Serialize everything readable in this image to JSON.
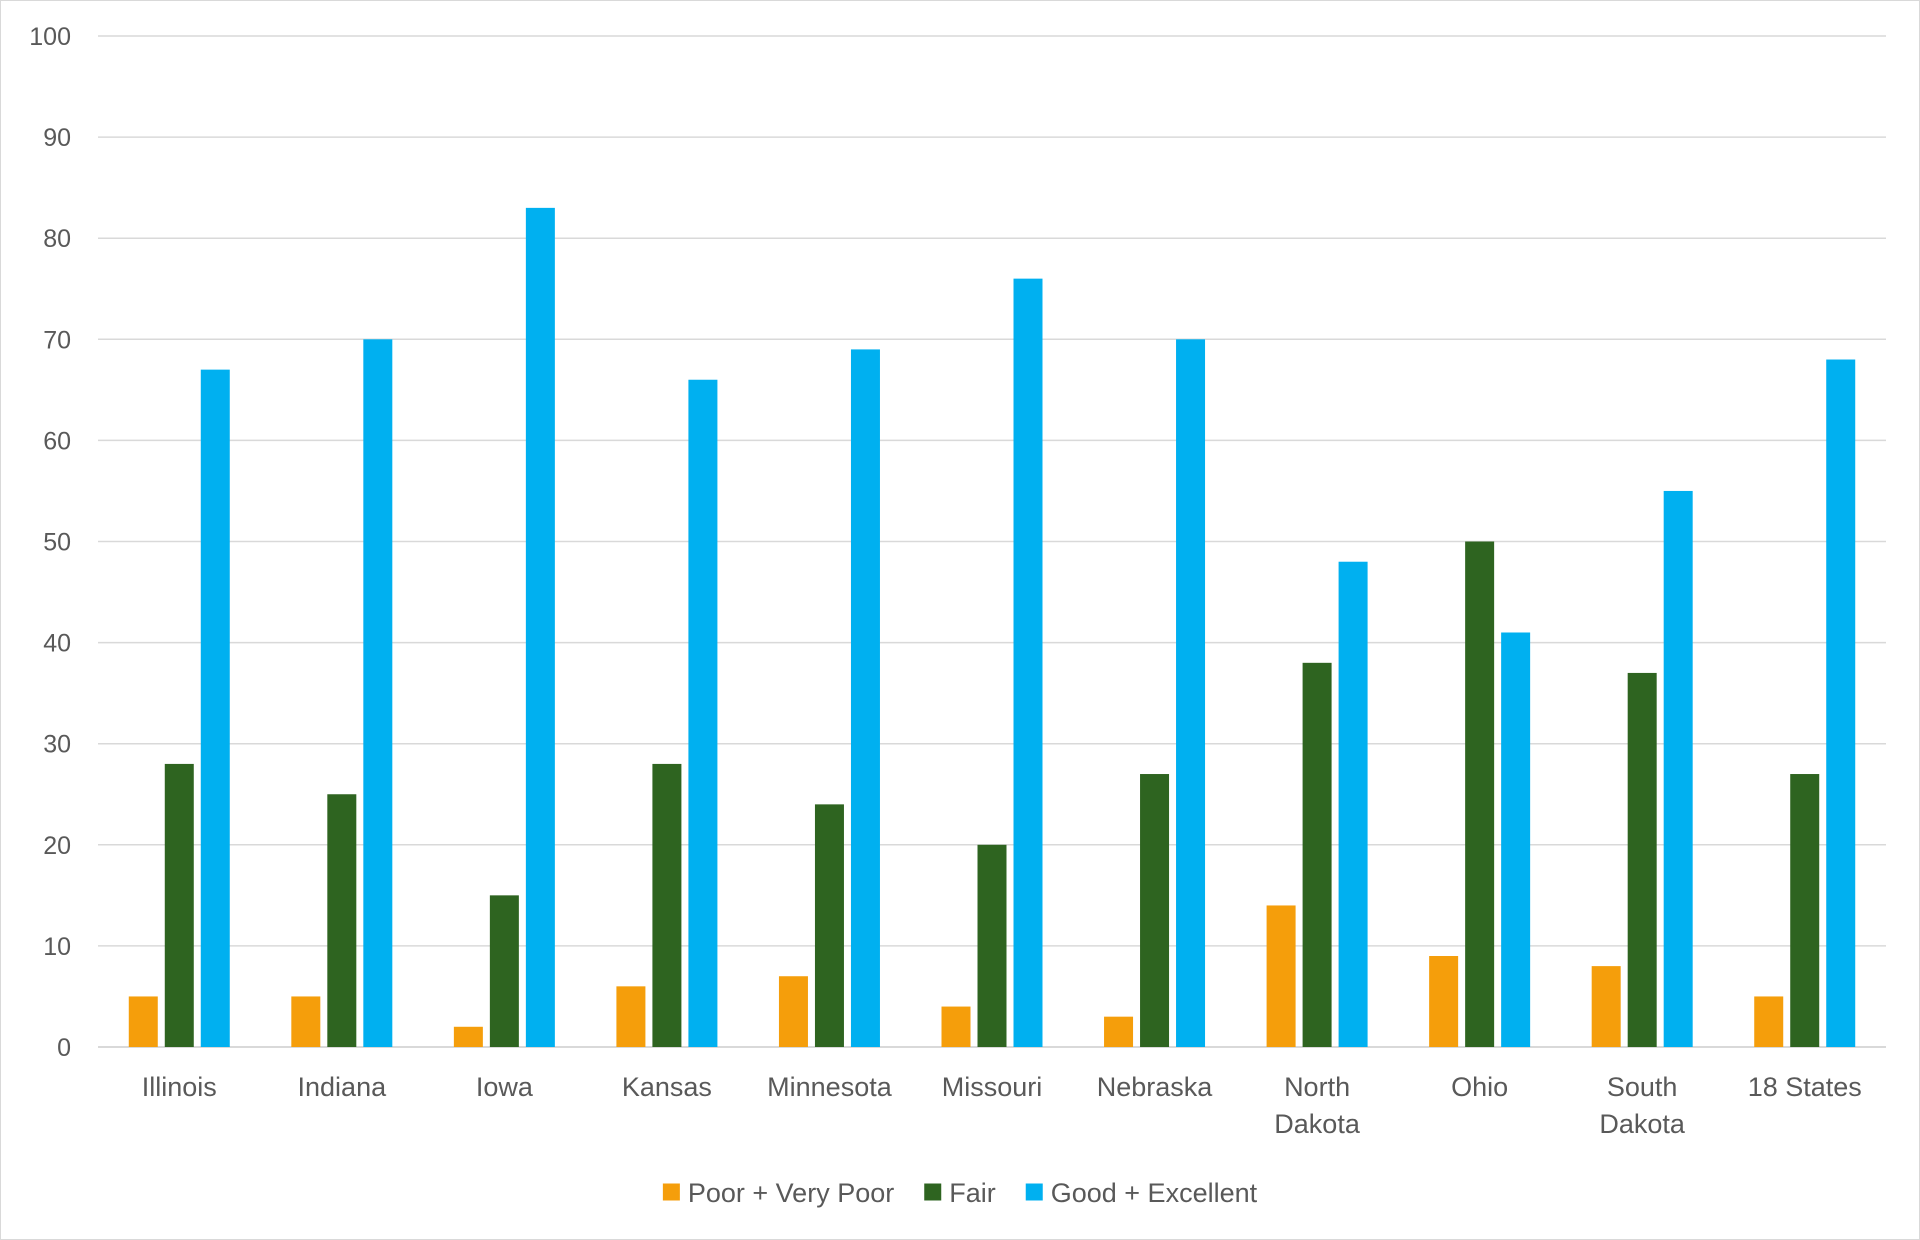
{
  "chart_data": {
    "type": "bar",
    "title": "",
    "xlabel": "",
    "ylabel": "",
    "ylim": [
      0,
      100
    ],
    "yticks": [
      0,
      10,
      20,
      30,
      40,
      50,
      60,
      70,
      80,
      90,
      100
    ],
    "grid": true,
    "legend_position": "bottom",
    "categories": [
      [
        "Illinois"
      ],
      [
        "Indiana"
      ],
      [
        "Iowa"
      ],
      [
        "Kansas"
      ],
      [
        "Minnesota"
      ],
      [
        "Missouri"
      ],
      [
        "Nebraska"
      ],
      [
        "North",
        "Dakota"
      ],
      [
        "Ohio"
      ],
      [
        "South",
        "Dakota"
      ],
      [
        "18 States"
      ]
    ],
    "series": [
      {
        "name": "Poor + Very Poor",
        "color": "#f59e0b",
        "values": [
          5,
          5,
          2,
          6,
          7,
          4,
          3,
          14,
          9,
          8,
          5
        ]
      },
      {
        "name": "Fair",
        "color": "#2e6420",
        "values": [
          28,
          25,
          15,
          28,
          24,
          20,
          27,
          38,
          50,
          37,
          27
        ]
      },
      {
        "name": "Good + Excellent",
        "color": "#00b0f0",
        "values": [
          67,
          70,
          83,
          66,
          69,
          76,
          70,
          48,
          41,
          55,
          68
        ]
      }
    ]
  }
}
